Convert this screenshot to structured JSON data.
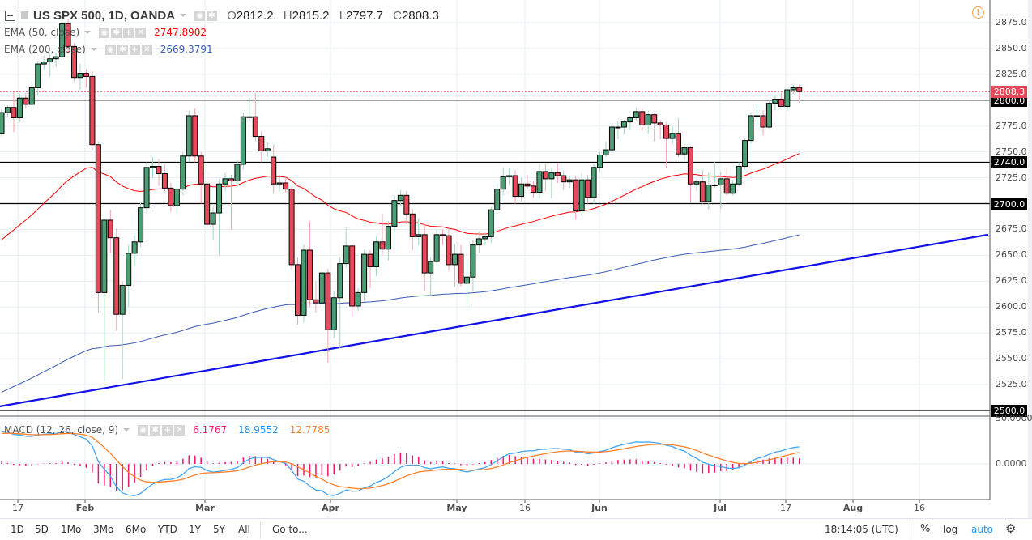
{
  "header": {
    "title": "US SPX 500, 1D, OANDA",
    "ohlc": {
      "o_label": "O",
      "o": "2812.2",
      "h_label": "H",
      "h": "2815.2",
      "l_label": "L",
      "l": "2797.7",
      "c_label": "C",
      "c": "2808.3"
    }
  },
  "indicators": [
    {
      "label": "EMA (50, close)",
      "value": "2747.8902",
      "color": "#ff0000"
    },
    {
      "label": "EMA (200, close)",
      "value": "2669.3791",
      "color": "#3a5bb5"
    }
  ],
  "macd": {
    "label": "MACD (12, 26, close, 9)",
    "histogram": "6.1767",
    "macd": "18.9552",
    "signal": "12.7785",
    "colors": {
      "histogram": "#f0146e",
      "macd": "#42a5f5",
      "signal": "#ff7f27"
    },
    "axis_ticks": [
      "50.0000",
      "0.0000"
    ]
  },
  "price_axis": {
    "ticks": [
      "2875.0",
      "2850.0",
      "2825.0",
      "2775.0",
      "2750.0",
      "2725.0",
      "2675.0",
      "2650.0",
      "2625.0",
      "2600.0",
      "2575.0",
      "2550.0",
      "2525.0"
    ],
    "last_price": "2808.3",
    "levels": [
      "2800.0",
      "2740.0",
      "2700.0",
      "2500.0"
    ]
  },
  "time_axis": {
    "labels": [
      "17",
      "Feb",
      "Mar",
      "Apr",
      "May",
      "16",
      "Jun",
      "Jul",
      "17",
      "Aug",
      "16"
    ]
  },
  "toolbar": {
    "ranges": [
      "1D",
      "5D",
      "1Mo",
      "3Mo",
      "6Mo",
      "YTD",
      "1Y",
      "5Y",
      "All"
    ],
    "goto": "Go to...",
    "clock": "18:14:05 (UTC)",
    "percent": "%",
    "log": "log",
    "auto": "auto"
  },
  "colors": {
    "up": "#4a9e73",
    "down": "#e8495a",
    "trendline": "#1010e8",
    "level": "#000000",
    "last_price_line": "#e8495a"
  },
  "chart_data": {
    "type": "candlestick",
    "symbol": "US SPX 500",
    "interval": "1D",
    "source": "OANDA",
    "ylim": [
      2490,
      2890
    ],
    "grid": true,
    "ohlc": [
      [
        2768,
        2791,
        2765,
        2788
      ],
      [
        2788,
        2795,
        2784,
        2793
      ],
      [
        2793,
        2808,
        2769,
        2783
      ],
      [
        2783,
        2806,
        2779,
        2802
      ],
      [
        2802,
        2807,
        2792,
        2796
      ],
      [
        2796,
        2818,
        2790,
        2812
      ],
      [
        2812,
        2838,
        2805,
        2835
      ],
      [
        2835,
        2843,
        2830,
        2837
      ],
      [
        2837,
        2845,
        2823,
        2840
      ],
      [
        2840,
        2846,
        2832,
        2842
      ],
      [
        2842,
        2876,
        2838,
        2874
      ],
      [
        2874,
        2878,
        2845,
        2852
      ],
      [
        2852,
        2855,
        2818,
        2822
      ],
      [
        2822,
        2835,
        2810,
        2826
      ],
      [
        2826,
        2830,
        2812,
        2823
      ],
      [
        2823,
        2828,
        2752,
        2757
      ],
      [
        2757,
        2760,
        2595,
        2614
      ],
      [
        2614,
        2685,
        2529,
        2684
      ],
      [
        2684,
        2694,
        2652,
        2667
      ],
      [
        2667,
        2676,
        2577,
        2593
      ],
      [
        2593,
        2625,
        2530,
        2621
      ],
      [
        2621,
        2660,
        2600,
        2652
      ],
      [
        2652,
        2669,
        2640,
        2663
      ],
      [
        2663,
        2701,
        2658,
        2696
      ],
      [
        2696,
        2740,
        2690,
        2735
      ],
      [
        2735,
        2745,
        2725,
        2736
      ],
      [
        2736,
        2743,
        2717,
        2729
      ],
      [
        2729,
        2738,
        2710,
        2715
      ],
      [
        2715,
        2720,
        2692,
        2698
      ],
      [
        2698,
        2719,
        2690,
        2714
      ],
      [
        2714,
        2750,
        2708,
        2746
      ],
      [
        2746,
        2790,
        2740,
        2785
      ],
      [
        2785,
        2792,
        2740,
        2746
      ],
      [
        2746,
        2750,
        2700,
        2719
      ],
      [
        2719,
        2730,
        2675,
        2680
      ],
      [
        2680,
        2697,
        2665,
        2691
      ],
      [
        2691,
        2723,
        2650,
        2719
      ],
      [
        2719,
        2730,
        2712,
        2724
      ],
      [
        2724,
        2728,
        2675,
        2722
      ],
      [
        2722,
        2742,
        2716,
        2738
      ],
      [
        2738,
        2788,
        2733,
        2784
      ],
      [
        2784,
        2803,
        2780,
        2784
      ],
      [
        2784,
        2807,
        2760,
        2765
      ],
      [
        2765,
        2770,
        2740,
        2751
      ],
      [
        2751,
        2759,
        2745,
        2753
      ],
      [
        2745,
        2757,
        2710,
        2719
      ],
      [
        2719,
        2728,
        2712,
        2720
      ],
      [
        2720,
        2727,
        2710,
        2714
      ],
      [
        2714,
        2717,
        2636,
        2641
      ],
      [
        2641,
        2648,
        2583,
        2592
      ],
      [
        2592,
        2660,
        2585,
        2655
      ],
      [
        2655,
        2683,
        2600,
        2607
      ],
      [
        2607,
        2625,
        2595,
        2604
      ],
      [
        2604,
        2640,
        2600,
        2633
      ],
      [
        2633,
        2637,
        2546,
        2578
      ],
      [
        2578,
        2615,
        2570,
        2609
      ],
      [
        2609,
        2648,
        2560,
        2642
      ],
      [
        2642,
        2677,
        2638,
        2659
      ],
      [
        2659,
        2662,
        2590,
        2601
      ],
      [
        2601,
        2618,
        2596,
        2614
      ],
      [
        2614,
        2655,
        2606,
        2651
      ],
      [
        2651,
        2655,
        2618,
        2639
      ],
      [
        2639,
        2668,
        2630,
        2663
      ],
      [
        2663,
        2690,
        2650,
        2656
      ],
      [
        2656,
        2683,
        2645,
        2678
      ],
      [
        2678,
        2708,
        2672,
        2703
      ],
      [
        2703,
        2713,
        2697,
        2708
      ],
      [
        2708,
        2712,
        2680,
        2690
      ],
      [
        2690,
        2695,
        2655,
        2668
      ],
      [
        2668,
        2686,
        2660,
        2670
      ],
      [
        2670,
        2680,
        2615,
        2633
      ],
      [
        2633,
        2648,
        2610,
        2644
      ],
      [
        2644,
        2675,
        2640,
        2670
      ],
      [
        2670,
        2675,
        2660,
        2669
      ],
      [
        2669,
        2678,
        2635,
        2641
      ],
      [
        2641,
        2660,
        2620,
        2651
      ],
      [
        2651,
        2660,
        2620,
        2623
      ],
      [
        2623,
        2645,
        2600,
        2629
      ],
      [
        2629,
        2665,
        2615,
        2660
      ],
      [
        2660,
        2673,
        2652,
        2666
      ],
      [
        2666,
        2672,
        2660,
        2668
      ],
      [
        2668,
        2697,
        2662,
        2694
      ],
      [
        2694,
        2720,
        2690,
        2714
      ],
      [
        2714,
        2735,
        2708,
        2726
      ],
      [
        2726,
        2734,
        2718,
        2727
      ],
      [
        2727,
        2732,
        2700,
        2707
      ],
      [
        2707,
        2725,
        2702,
        2719
      ],
      [
        2719,
        2728,
        2714,
        2717
      ],
      [
        2717,
        2722,
        2706,
        2711
      ],
      [
        2711,
        2738,
        2705,
        2731
      ],
      [
        2731,
        2739,
        2712,
        2724
      ],
      [
        2724,
        2735,
        2705,
        2730
      ],
      [
        2730,
        2739,
        2720,
        2727
      ],
      [
        2727,
        2732,
        2713,
        2721
      ],
      [
        2721,
        2727,
        2715,
        2723
      ],
      [
        2723,
        2727,
        2685,
        2693
      ],
      [
        2693,
        2729,
        2688,
        2723
      ],
      [
        2723,
        2728,
        2700,
        2706
      ],
      [
        2706,
        2738,
        2700,
        2735
      ],
      [
        2735,
        2750,
        2730,
        2747
      ],
      [
        2747,
        2760,
        2745,
        2752
      ],
      [
        2752,
        2776,
        2749,
        2774
      ],
      [
        2774,
        2780,
        2762,
        2774
      ],
      [
        2774,
        2781,
        2767,
        2779
      ],
      [
        2779,
        2785,
        2772,
        2783
      ],
      [
        2783,
        2792,
        2780,
        2789
      ],
      [
        2789,
        2792,
        2770,
        2776
      ],
      [
        2776,
        2790,
        2768,
        2786
      ],
      [
        2786,
        2788,
        2760,
        2778
      ],
      [
        2778,
        2781,
        2762,
        2776
      ],
      [
        2776,
        2779,
        2735,
        2763
      ],
      [
        2763,
        2775,
        2757,
        2768
      ],
      [
        2768,
        2782,
        2745,
        2748
      ],
      [
        2748,
        2758,
        2742,
        2754
      ],
      [
        2754,
        2756,
        2701,
        2719
      ],
      [
        2719,
        2724,
        2712,
        2721
      ],
      [
        2721,
        2732,
        2700,
        2702
      ],
      [
        2702,
        2730,
        2694,
        2718
      ],
      [
        2718,
        2741,
        2715,
        2718
      ],
      [
        2718,
        2730,
        2695,
        2724
      ],
      [
        2724,
        2735,
        2708,
        2710
      ],
      [
        2710,
        2723,
        2708,
        2719
      ],
      [
        2719,
        2740,
        2716,
        2736
      ],
      [
        2736,
        2764,
        2733,
        2761
      ],
      [
        2761,
        2787,
        2758,
        2785
      ],
      [
        2785,
        2795,
        2775,
        2785
      ],
      [
        2785,
        2790,
        2766,
        2774
      ],
      [
        2774,
        2800,
        2773,
        2797
      ],
      [
        2797,
        2805,
        2790,
        2801
      ],
      [
        2801,
        2807,
        2795,
        2794
      ],
      [
        2794,
        2814,
        2790,
        2810
      ],
      [
        2810,
        2816,
        2806,
        2812
      ],
      [
        2812.2,
        2815.2,
        2797.7,
        2808.3
      ]
    ],
    "horizontal_levels": [
      2800,
      2740,
      2700,
      2500
    ],
    "trendline": {
      "start_price": 2504,
      "end_price": 2670
    },
    "ema": [
      {
        "period": 50,
        "last": 2747.8902
      },
      {
        "period": 200,
        "last": 2669.3791
      }
    ],
    "macd_last": {
      "histogram": 6.1767,
      "macd": 18.9552,
      "signal": 12.7785
    },
    "macd_ylim": [
      -35,
      55
    ]
  }
}
